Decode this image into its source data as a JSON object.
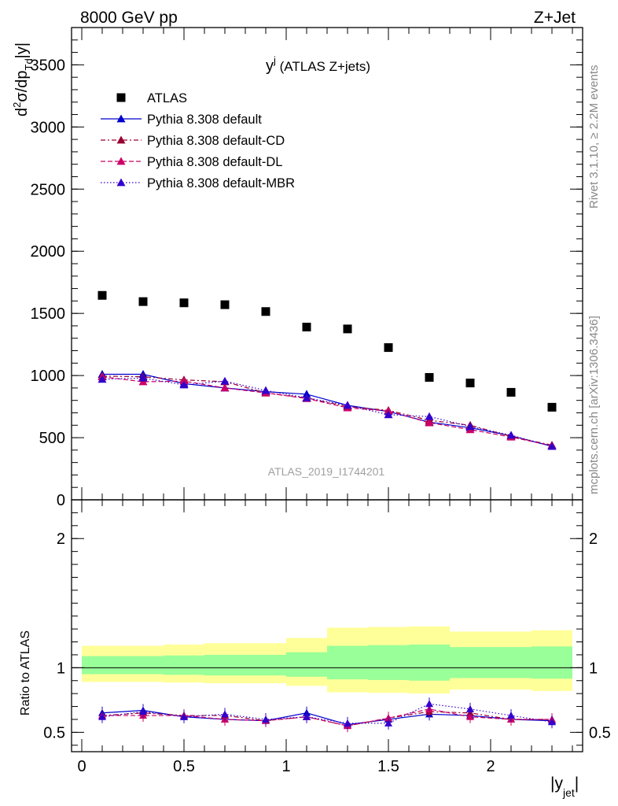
{
  "header": {
    "left": "8000 GeV pp",
    "right": "Z+Jet"
  },
  "side_text": {
    "rivet": "Rivet 3.1.10, ≥ 2.2M events",
    "mcplots": "mcplots.cern.ch [arXiv:1306.3436]"
  },
  "watermark": "ATLAS_2019_I1744201",
  "chart_data": [
    {
      "type": "scatter",
      "title": "y^j (ATLAS Z+jets)",
      "title_main": "y",
      "title_sup": "j",
      "title_rest": " (ATLAS Z+jets)",
      "ylabel": "d²σ/dp_Td|y|",
      "ylim": [
        0,
        3800
      ],
      "yticks": [
        0,
        500,
        1000,
        1500,
        2000,
        2500,
        3000,
        3500
      ],
      "xlim": [
        -0.05,
        2.45
      ],
      "legend_position": "top-left",
      "x": [
        0.1,
        0.3,
        0.5,
        0.7,
        0.9,
        1.1,
        1.3,
        1.5,
        1.7,
        1.9,
        2.1,
        2.3
      ],
      "series": [
        {
          "name": "ATLAS",
          "color": "#000000",
          "marker": "square",
          "line": "none",
          "values": [
            1645,
            1595,
            1585,
            1570,
            1515,
            1390,
            1375,
            1225,
            985,
            940,
            865,
            745
          ]
        },
        {
          "name": "Pythia 8.308 default",
          "color": "#0000cc",
          "marker": "triangle",
          "line": "solid",
          "step": true,
          "values": [
            1010,
            1010,
            935,
            900,
            870,
            850,
            760,
            710,
            625,
            580,
            515,
            430
          ]
        },
        {
          "name": "Pythia 8.308 default-CD",
          "color": "#990033",
          "marker": "triangle",
          "line": "dashdot",
          "values": [
            995,
            990,
            965,
            950,
            860,
            820,
            750,
            720,
            640,
            600,
            510,
            440
          ]
        },
        {
          "name": "Pythia 8.308 default-DL",
          "color": "#cc0066",
          "marker": "triangle",
          "line": "dashed",
          "values": [
            990,
            950,
            955,
            900,
            860,
            815,
            740,
            715,
            620,
            565,
            505,
            435
          ]
        },
        {
          "name": "Pythia 8.308 default-MBR",
          "color": "#3300cc",
          "marker": "triangle",
          "line": "dotted",
          "values": [
            970,
            980,
            925,
            955,
            880,
            820,
            760,
            685,
            670,
            590,
            520,
            430
          ]
        }
      ]
    },
    {
      "type": "scatter",
      "ylabel": "Ratio to ATLAS",
      "xlabel": "|y_jet|",
      "xlabel_main": "|y",
      "xlabel_sub": "jet",
      "xlabel_end": "|",
      "ylim": [
        0.35,
        2.3
      ],
      "yticks": [
        0.5,
        1,
        2
      ],
      "xlim": [
        -0.05,
        2.45
      ],
      "xticks": [
        0,
        0.5,
        1,
        1.5,
        2
      ],
      "x": [
        0.1,
        0.3,
        0.5,
        0.7,
        0.9,
        1.1,
        1.3,
        1.5,
        1.7,
        1.9,
        2.1,
        2.3
      ],
      "bands": {
        "edges": [
          0.0,
          0.2,
          0.4,
          0.6,
          0.8,
          1.0,
          1.2,
          1.4,
          1.6,
          1.8,
          2.0,
          2.2,
          2.4
        ],
        "yellow_lo": [
          0.89,
          0.89,
          0.885,
          0.88,
          0.88,
          0.86,
          0.81,
          0.805,
          0.8,
          0.83,
          0.83,
          0.82
        ],
        "yellow_hi": [
          1.17,
          1.17,
          1.18,
          1.19,
          1.19,
          1.23,
          1.31,
          1.315,
          1.32,
          1.28,
          1.28,
          1.29
        ],
        "green_lo": [
          0.95,
          0.95,
          0.945,
          0.94,
          0.94,
          0.93,
          0.91,
          0.905,
          0.9,
          0.92,
          0.92,
          0.915
        ],
        "green_hi": [
          1.09,
          1.09,
          1.095,
          1.1,
          1.1,
          1.12,
          1.17,
          1.175,
          1.18,
          1.16,
          1.16,
          1.165
        ]
      },
      "series": [
        {
          "name": "Pythia 8.308 default",
          "color": "#0000cc",
          "line": "solid",
          "step": true,
          "values": [
            0.65,
            0.67,
            0.62,
            0.6,
            0.59,
            0.65,
            0.56,
            0.6,
            0.64,
            0.63,
            0.6,
            0.59
          ]
        },
        {
          "name": "Pythia 8.308 default-CD",
          "color": "#990033",
          "line": "dashdot",
          "values": [
            0.63,
            0.65,
            0.63,
            0.63,
            0.59,
            0.62,
            0.55,
            0.61,
            0.66,
            0.65,
            0.6,
            0.6
          ]
        },
        {
          "name": "Pythia 8.308 default-DL",
          "color": "#cc0066",
          "line": "dashed",
          "values": [
            0.63,
            0.63,
            0.63,
            0.6,
            0.59,
            0.62,
            0.55,
            0.61,
            0.68,
            0.62,
            0.6,
            0.6
          ]
        },
        {
          "name": "Pythia 8.308 default-MBR",
          "color": "#3300cc",
          "line": "dotted",
          "values": [
            0.62,
            0.66,
            0.62,
            0.64,
            0.6,
            0.62,
            0.57,
            0.57,
            0.72,
            0.68,
            0.63,
            0.58
          ]
        }
      ]
    }
  ]
}
